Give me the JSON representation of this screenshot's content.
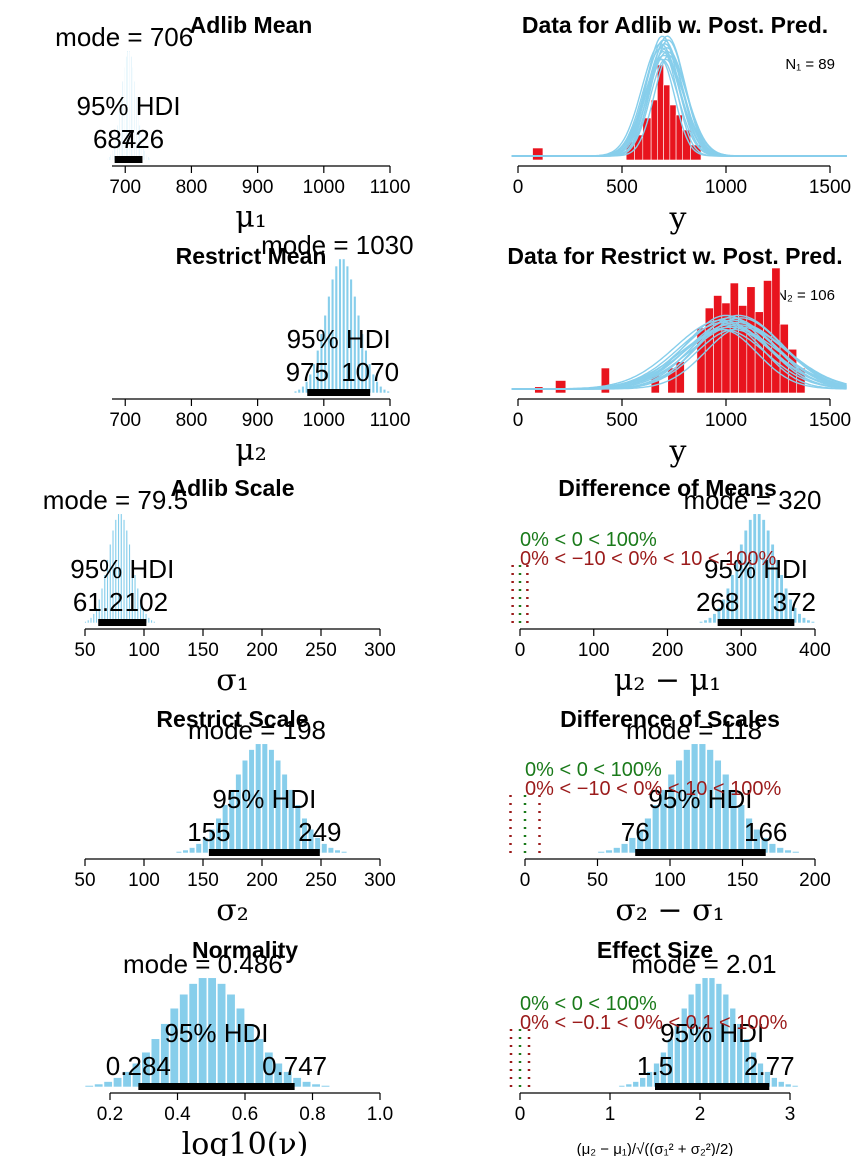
{
  "chart_data": [
    {
      "type": "histogram",
      "title": "Adlib Mean",
      "mode_text": "mode = 706",
      "hdi_label": "95% HDI",
      "hdi": [
        684,
        726
      ],
      "hdi_low_text": "684",
      "hdi_high_text": "726",
      "xlabel": "μ₁",
      "xlim": [
        680,
        1100
      ],
      "xticks": [
        700,
        800,
        900,
        1000,
        1100
      ],
      "dist": {
        "center": 706,
        "sd": 11
      }
    },
    {
      "type": "histogram",
      "title": "Restrict Mean",
      "mode_text": "mode = 1030",
      "hdi_label": "95% HDI",
      "hdi": [
        975,
        1070
      ],
      "hdi_low_text": "975",
      "hdi_high_text": "1070",
      "xlabel": "μ₂",
      "xlim": [
        680,
        1100
      ],
      "xticks": [
        700,
        800,
        900,
        1000,
        1100
      ],
      "dist": {
        "center": 1028,
        "sd": 24
      }
    },
    {
      "type": "histogram",
      "title": "Adlib Scale",
      "mode_text": "mode = 79.5",
      "hdi_label": "95% HDI",
      "hdi": [
        61.2,
        102
      ],
      "hdi_low_text": "61.2",
      "hdi_high_text": "102",
      "xlabel": "σ₁",
      "xlim": [
        50,
        300
      ],
      "xticks": [
        50,
        100,
        150,
        200,
        250,
        300
      ],
      "dist": {
        "center": 80,
        "sd": 10
      }
    },
    {
      "type": "histogram",
      "title": "Restrict Scale",
      "mode_text": "mode = 198",
      "hdi_label": "95% HDI",
      "hdi": [
        155,
        249
      ],
      "hdi_low_text": "155",
      "hdi_high_text": "249",
      "xlabel": "σ₂",
      "xlim": [
        50,
        300
      ],
      "xticks": [
        50,
        100,
        150,
        200,
        250,
        300
      ],
      "dist": {
        "center": 200,
        "sd": 24
      }
    },
    {
      "type": "histogram",
      "title": "Normality",
      "mode_text": "mode = 0.486",
      "hdi_label": "95% HDI",
      "hdi": [
        0.284,
        0.747
      ],
      "hdi_low_text": "0.284",
      "hdi_high_text": "0.747",
      "xlabel": "log10(ν)",
      "xlim": [
        0.2,
        1.0
      ],
      "xticks": [
        0.2,
        0.4,
        0.6,
        0.8,
        1.0
      ],
      "xtick_labels": [
        "0.2",
        "0.4",
        "0.6",
        "0.8",
        "1.0"
      ],
      "dist": {
        "center": 0.49,
        "sd": 0.12
      }
    },
    {
      "type": "histogram+predictive",
      "title": "Data for Adlib w. Post. Pred.",
      "n_label": "N₁ = 89",
      "xlabel": "y",
      "xlim": [
        0,
        1500
      ],
      "xticks": [
        0,
        500,
        1000,
        1500
      ],
      "data_bins": [
        {
          "x0": 70,
          "x1": 120,
          "h": 0.12
        },
        {
          "x0": 520,
          "x1": 560,
          "h": 0.18
        },
        {
          "x0": 560,
          "x1": 600,
          "h": 0.25
        },
        {
          "x0": 600,
          "x1": 640,
          "h": 0.42
        },
        {
          "x0": 640,
          "x1": 670,
          "h": 0.6
        },
        {
          "x0": 670,
          "x1": 700,
          "h": 0.95
        },
        {
          "x0": 700,
          "x1": 730,
          "h": 0.75
        },
        {
          "x0": 730,
          "x1": 760,
          "h": 0.55
        },
        {
          "x0": 760,
          "x1": 790,
          "h": 0.45
        },
        {
          "x0": 790,
          "x1": 830,
          "h": 0.3
        },
        {
          "x0": 830,
          "x1": 880,
          "h": 0.15
        }
      ],
      "pred": {
        "center": 706,
        "sd": 80
      }
    },
    {
      "type": "histogram+predictive",
      "title": "Data for Restrict w. Post. Pred.",
      "n_label": "N₂ = 106",
      "xlabel": "y",
      "xlim": [
        0,
        1500
      ],
      "xticks": [
        0,
        500,
        1000,
        1500
      ],
      "data_bins": [
        {
          "x0": 80,
          "x1": 120,
          "h": 0.05
        },
        {
          "x0": 180,
          "x1": 230,
          "h": 0.1
        },
        {
          "x0": 400,
          "x1": 440,
          "h": 0.2
        },
        {
          "x0": 640,
          "x1": 680,
          "h": 0.15
        },
        {
          "x0": 720,
          "x1": 760,
          "h": 0.2
        },
        {
          "x0": 760,
          "x1": 800,
          "h": 0.25
        },
        {
          "x0": 860,
          "x1": 900,
          "h": 0.52
        },
        {
          "x0": 900,
          "x1": 940,
          "h": 0.68
        },
        {
          "x0": 940,
          "x1": 980,
          "h": 0.78
        },
        {
          "x0": 980,
          "x1": 1020,
          "h": 0.72
        },
        {
          "x0": 1020,
          "x1": 1060,
          "h": 0.88
        },
        {
          "x0": 1060,
          "x1": 1100,
          "h": 0.7
        },
        {
          "x0": 1100,
          "x1": 1140,
          "h": 0.85
        },
        {
          "x0": 1140,
          "x1": 1180,
          "h": 0.65
        },
        {
          "x0": 1180,
          "x1": 1220,
          "h": 0.9
        },
        {
          "x0": 1220,
          "x1": 1260,
          "h": 1.0
        },
        {
          "x0": 1260,
          "x1": 1300,
          "h": 0.55
        },
        {
          "x0": 1300,
          "x1": 1340,
          "h": 0.35
        },
        {
          "x0": 1340,
          "x1": 1380,
          "h": 0.2
        }
      ],
      "pred": {
        "center": 1030,
        "sd": 200
      }
    },
    {
      "type": "histogram",
      "title": "Difference of Means",
      "mode_text": "mode = 320",
      "hdi_label": "95% HDI",
      "hdi": [
        268,
        372
      ],
      "hdi_low_text": "268",
      "hdi_high_text": "372",
      "comp_text": "0% < 0 < 100%",
      "rope_text": "0% < −10 < 0% < 10 < 100%",
      "comp_value": 0,
      "rope": [
        -10,
        10
      ],
      "xlabel": "μ₂ − μ₁",
      "xlim": [
        0,
        400
      ],
      "xticks": [
        0,
        100,
        200,
        300,
        400
      ],
      "dist": {
        "center": 322,
        "sd": 26
      }
    },
    {
      "type": "histogram",
      "title": "Difference of Scales",
      "mode_text": "mode = 118",
      "hdi_label": "95% HDI",
      "hdi": [
        76,
        166
      ],
      "hdi_low_text": "76",
      "hdi_high_text": "166",
      "comp_text": "0% < 0 < 100%",
      "rope_text": "0% < −10 < 0% < 10 < 100%",
      "comp_value": 0,
      "rope": [
        -10,
        10
      ],
      "xlabel": "σ₂ − σ₁",
      "xlim": [
        0,
        200
      ],
      "xticks": [
        0,
        50,
        100,
        150,
        200
      ],
      "dist": {
        "center": 120,
        "sd": 23
      }
    },
    {
      "type": "histogram",
      "title": "Effect Size",
      "mode_text": "mode = 2.01",
      "hdi_label": "95% HDI",
      "hdi": [
        1.5,
        2.77
      ],
      "hdi_low_text": "1.5",
      "hdi_high_text": "2.77",
      "comp_text": "0% < 0 < 100%",
      "rope_text": "0% < −0.1 < 0% < 0.1 < 100%",
      "comp_value": 0,
      "rope": [
        -0.1,
        0.1
      ],
      "xlabel": "(μ₂ − μ₁)/√((σ₁² + σ₂²)/2)",
      "xlim": [
        0,
        3
      ],
      "xticks": [
        0,
        1,
        2,
        3
      ],
      "dist": {
        "center": 2.1,
        "sd": 0.33
      }
    }
  ],
  "colors": {
    "posterior_bars": "#87ceeb",
    "bar_edge": "#ffffff",
    "hdi_bar": "#000000",
    "data_bars": "#e8141e",
    "pred_curves": "#87ceeb",
    "comp_text": "#1a7a1a",
    "rope_text": "#9b1b1b"
  }
}
